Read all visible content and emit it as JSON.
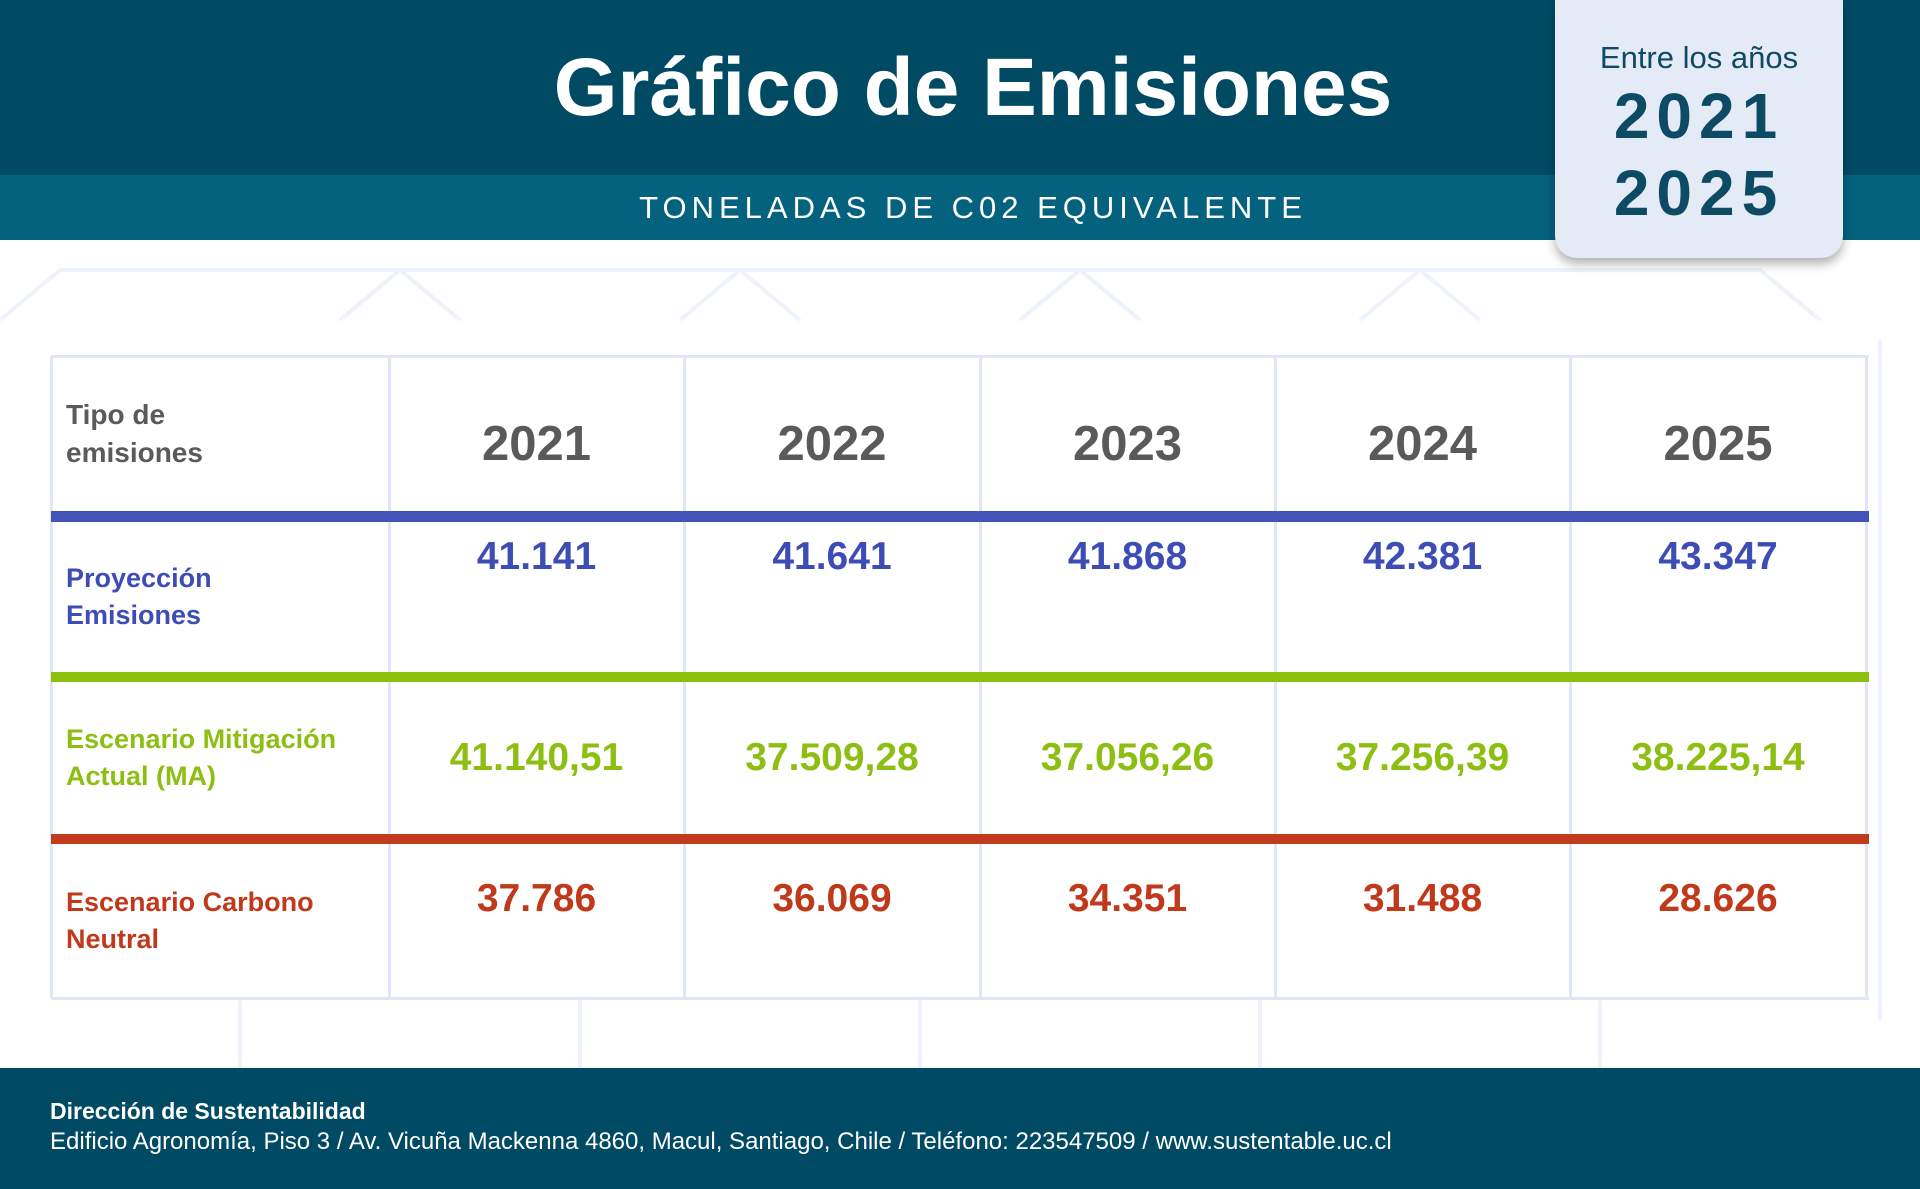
{
  "header": {
    "title": "Gráfico de Emisiones",
    "subtitle": "TONELADAS DE C02 EQUIVALENTE"
  },
  "badge": {
    "label": "Entre los años",
    "start": "2021",
    "end": "2025"
  },
  "table": {
    "header": [
      "Tipo de emisiones",
      "2021",
      "2022",
      "2023",
      "2024",
      "2025"
    ],
    "rows": [
      [
        "Proyección Emisiones",
        "41.141",
        "41.641",
        "41.868",
        "42.381",
        "43.347"
      ],
      [
        "Escenario Mitigación Actual (MA)",
        "41.140,51",
        "37.509,28",
        "37.056,26",
        "37.256,39",
        "38.225,14"
      ],
      [
        "Escenario Carbono Neutral",
        "37.786",
        "36.069",
        "34.351",
        "31.488",
        "28.626"
      ]
    ]
  },
  "footer": {
    "organization": "Dirección de Sustentabilidad",
    "address": "Edificio Agronomía, Piso 3 / Av. Vicuña Mackenna 4860, Macul, Santiago, Chile /  Teléfono: 223547509 / www.sustentable.uc.cl"
  }
}
